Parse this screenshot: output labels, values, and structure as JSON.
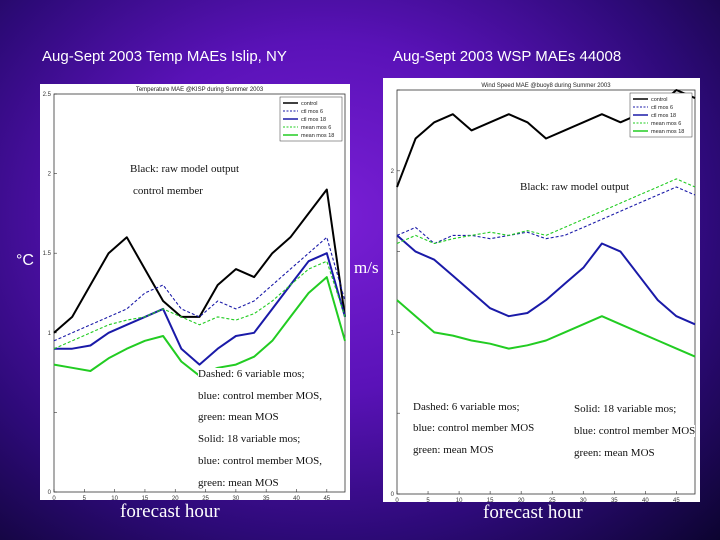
{
  "slide": {
    "title_left": "Aug-Sept 2003 Temp MAEs Islip, NY",
    "title_right": "Aug-Sept 2003 WSP MAEs 44008",
    "unit_left": "°C",
    "unit_right": "m/s",
    "xlabel_left": "forecast hour",
    "xlabel_right": "forecast hour"
  },
  "notes_left": {
    "black1": "Black: raw model output",
    "black2": "control member",
    "d1": "Dashed: 6 variable mos;",
    "d2": "blue: control member MOS,",
    "d3": "green: mean MOS",
    "s1": "Solid: 18 variable mos;",
    "s2": "blue: control member MOS,",
    "s3": "green: mean MOS"
  },
  "notes_right": {
    "black": "Black: raw model output",
    "d1": "Dashed: 6 variable mos;",
    "d2": "blue: control member MOS",
    "d3": "green: mean MOS",
    "s1": "Solid: 18 variable mos;",
    "s2": "blue: control member MOS",
    "s3": "green: mean MOS"
  },
  "colors": {
    "raw": "#000000",
    "ctl_mos": "#1a1aa8",
    "mean_mos": "#22cc22"
  },
  "chart_data": [
    {
      "type": "line",
      "title": "Temperature MAE @KISP during Summer 2003",
      "xlabel": "forecast hour",
      "ylabel": "°C",
      "xlim": [
        0,
        48
      ],
      "ylim": [
        0,
        2.5
      ],
      "xticks": [
        0,
        5,
        10,
        15,
        20,
        25,
        30,
        35,
        40,
        45
      ],
      "yticks": [
        0,
        0.5,
        1,
        1.5,
        2,
        2.5
      ],
      "ytick_labels": [
        "0",
        "",
        "1",
        "1.5",
        "2",
        "2.5"
      ],
      "x": [
        0,
        3,
        6,
        9,
        12,
        15,
        18,
        21,
        24,
        27,
        30,
        33,
        36,
        39,
        42,
        45,
        48
      ],
      "series": [
        {
          "name": "control",
          "style": "solid",
          "color_key": "raw",
          "values": [
            1.0,
            1.1,
            1.3,
            1.5,
            1.6,
            1.4,
            1.2,
            1.1,
            1.1,
            1.3,
            1.4,
            1.35,
            1.5,
            1.6,
            1.75,
            1.9,
            1.1
          ]
        },
        {
          "name": "ctl mos 6",
          "style": "dashed",
          "color_key": "ctl_mos",
          "values": [
            0.95,
            1.0,
            1.05,
            1.1,
            1.15,
            1.25,
            1.3,
            1.15,
            1.1,
            1.2,
            1.15,
            1.2,
            1.3,
            1.4,
            1.5,
            1.6,
            1.2
          ]
        },
        {
          "name": "ctl mos 18",
          "style": "solid",
          "color_key": "ctl_mos",
          "values": [
            0.9,
            0.9,
            0.92,
            1.0,
            1.05,
            1.1,
            1.15,
            0.9,
            0.8,
            0.9,
            0.98,
            1.0,
            1.15,
            1.3,
            1.45,
            1.5,
            1.1
          ]
        },
        {
          "name": "mean mos 6",
          "style": "dashed",
          "color_key": "mean_mos",
          "values": [
            0.9,
            0.95,
            1.0,
            1.05,
            1.08,
            1.1,
            1.15,
            1.1,
            1.05,
            1.1,
            1.08,
            1.12,
            1.2,
            1.3,
            1.4,
            1.45,
            1.1
          ]
        },
        {
          "name": "mean mos 18",
          "style": "solid",
          "color_key": "mean_mos",
          "values": [
            0.8,
            0.78,
            0.76,
            0.84,
            0.9,
            0.95,
            0.98,
            0.82,
            0.73,
            0.78,
            0.8,
            0.85,
            0.95,
            1.1,
            1.25,
            1.35,
            0.95
          ]
        }
      ]
    },
    {
      "type": "line",
      "title": "Wind Speed MAE @buoy8 during Summer 2003",
      "xlabel": "forecast hour",
      "ylabel": "m/s",
      "xlim": [
        0,
        48
      ],
      "ylim": [
        0,
        2.5
      ],
      "xticks": [
        0,
        5,
        10,
        15,
        20,
        25,
        30,
        35,
        40,
        45
      ],
      "yticks": [
        0,
        0.5,
        1,
        1.5,
        2,
        2.5
      ],
      "ytick_labels": [
        "0",
        "",
        "1",
        "",
        "2",
        ""
      ],
      "x": [
        0,
        3,
        6,
        9,
        12,
        15,
        18,
        21,
        24,
        27,
        30,
        33,
        36,
        39,
        42,
        45,
        48
      ],
      "series": [
        {
          "name": "control",
          "style": "solid",
          "color_key": "raw",
          "values": [
            1.9,
            2.2,
            2.3,
            2.35,
            2.25,
            2.3,
            2.35,
            2.3,
            2.2,
            2.25,
            2.3,
            2.35,
            2.3,
            2.35,
            2.4,
            2.5,
            2.45
          ]
        },
        {
          "name": "ctl mos 6",
          "style": "dashed",
          "color_key": "ctl_mos",
          "values": [
            1.6,
            1.65,
            1.55,
            1.6,
            1.6,
            1.58,
            1.6,
            1.62,
            1.58,
            1.6,
            1.65,
            1.7,
            1.75,
            1.8,
            1.85,
            1.9,
            1.85
          ]
        },
        {
          "name": "ctl mos 18",
          "style": "solid",
          "color_key": "ctl_mos",
          "values": [
            1.6,
            1.5,
            1.45,
            1.35,
            1.25,
            1.15,
            1.1,
            1.12,
            1.2,
            1.3,
            1.4,
            1.55,
            1.5,
            1.35,
            1.2,
            1.1,
            1.05
          ]
        },
        {
          "name": "mean mos 6",
          "style": "dashed",
          "color_key": "mean_mos",
          "values": [
            1.55,
            1.6,
            1.55,
            1.58,
            1.6,
            1.62,
            1.6,
            1.63,
            1.6,
            1.65,
            1.7,
            1.75,
            1.8,
            1.85,
            1.9,
            1.95,
            1.9
          ]
        },
        {
          "name": "mean mos 18",
          "style": "solid",
          "color_key": "mean_mos",
          "values": [
            1.2,
            1.1,
            1.0,
            0.98,
            0.95,
            0.93,
            0.9,
            0.92,
            0.95,
            1.0,
            1.05,
            1.1,
            1.05,
            1.0,
            0.95,
            0.9,
            0.85
          ]
        }
      ]
    }
  ]
}
